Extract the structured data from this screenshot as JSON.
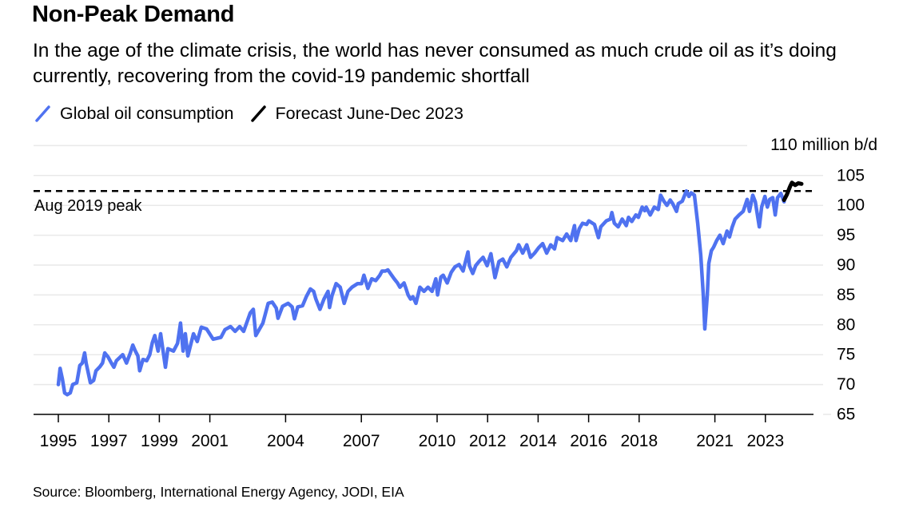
{
  "chart_data": {
    "type": "line",
    "title": "Non-Peak Demand",
    "subtitle": "In the age of the climate crisis, the world has never consumed as much crude oil as it’s doing currently, recovering from the covid-19 pandemic shortfall",
    "xlabel": "",
    "ylabel": "million b/d",
    "y_unit_label": "110 million b/d",
    "ylim": [
      65,
      110
    ],
    "xlim": [
      1995,
      2024.9
    ],
    "grid": true,
    "legend_position": "top-left",
    "y_ticks": [
      "110 million b/d",
      "105",
      "100",
      "95",
      "90",
      "85",
      "80",
      "75",
      "70",
      "65"
    ],
    "y_tick_values": [
      110,
      105,
      100,
      95,
      90,
      85,
      80,
      75,
      70,
      65
    ],
    "x_ticks": [
      "1995",
      "1997",
      "1999",
      "2001",
      "2004",
      "2007",
      "2010",
      "2012",
      "2014",
      "2016",
      "2018",
      "2021",
      "2023"
    ],
    "x_tick_values": [
      1995,
      1997,
      1999,
      2001,
      2004,
      2007,
      2010,
      2012,
      2014,
      2016,
      2018,
      2021,
      2023
    ],
    "reference_line": {
      "label": "Aug 2019 peak",
      "value": 102.4,
      "style": "dashed",
      "color": "#000000"
    },
    "series": [
      {
        "name": "Global oil consumption",
        "color": "#4f72f0",
        "points": [
          [
            1995.0,
            70.0
          ],
          [
            1995.07,
            72.7
          ],
          [
            1995.16,
            70.9
          ],
          [
            1995.25,
            68.6
          ],
          [
            1995.35,
            68.3
          ],
          [
            1995.47,
            68.6
          ],
          [
            1995.57,
            70.0
          ],
          [
            1995.73,
            70.3
          ],
          [
            1995.85,
            73.2
          ],
          [
            1995.95,
            73.6
          ],
          [
            1996.04,
            75.3
          ],
          [
            1996.1,
            73.6
          ],
          [
            1996.27,
            70.3
          ],
          [
            1996.4,
            70.7
          ],
          [
            1996.49,
            72.3
          ],
          [
            1996.65,
            73.0
          ],
          [
            1996.75,
            73.6
          ],
          [
            1996.84,
            75.3
          ],
          [
            1996.97,
            74.6
          ],
          [
            1997.1,
            73.6
          ],
          [
            1997.2,
            72.9
          ],
          [
            1997.3,
            74.0
          ],
          [
            1997.45,
            74.6
          ],
          [
            1997.55,
            75.0
          ],
          [
            1997.7,
            73.6
          ],
          [
            1997.85,
            75.3
          ],
          [
            1997.95,
            76.6
          ],
          [
            1998.05,
            75.6
          ],
          [
            1998.15,
            74.8
          ],
          [
            1998.22,
            72.3
          ],
          [
            1998.35,
            74.2
          ],
          [
            1998.5,
            74.0
          ],
          [
            1998.62,
            75.0
          ],
          [
            1998.72,
            77.0
          ],
          [
            1998.82,
            78.2
          ],
          [
            1998.95,
            75.6
          ],
          [
            1999.05,
            78.5
          ],
          [
            1999.15,
            75.6
          ],
          [
            1999.24,
            72.9
          ],
          [
            1999.34,
            76.0
          ],
          [
            1999.56,
            75.6
          ],
          [
            1999.72,
            76.9
          ],
          [
            1999.84,
            80.3
          ],
          [
            1999.94,
            75.6
          ],
          [
            2000.03,
            78.5
          ],
          [
            2000.13,
            74.8
          ],
          [
            2000.35,
            78.5
          ],
          [
            2000.5,
            77.2
          ],
          [
            2000.66,
            79.6
          ],
          [
            2000.87,
            79.3
          ],
          [
            2001.13,
            77.6
          ],
          [
            2001.44,
            77.9
          ],
          [
            2001.6,
            79.2
          ],
          [
            2001.82,
            79.7
          ],
          [
            2002.0,
            78.9
          ],
          [
            2002.18,
            79.7
          ],
          [
            2002.34,
            78.9
          ],
          [
            2002.6,
            82.0
          ],
          [
            2002.72,
            82.6
          ],
          [
            2002.82,
            78.2
          ],
          [
            2003.1,
            80.3
          ],
          [
            2003.31,
            83.6
          ],
          [
            2003.47,
            83.8
          ],
          [
            2003.63,
            82.8
          ],
          [
            2003.7,
            81.1
          ],
          [
            2003.88,
            83.1
          ],
          [
            2004.1,
            83.6
          ],
          [
            2004.26,
            83.0
          ],
          [
            2004.35,
            81.0
          ],
          [
            2004.48,
            83.0
          ],
          [
            2004.67,
            83.2
          ],
          [
            2004.82,
            84.7
          ],
          [
            2004.98,
            86.0
          ],
          [
            2005.11,
            85.6
          ],
          [
            2005.2,
            84.3
          ],
          [
            2005.36,
            82.6
          ],
          [
            2005.52,
            84.3
          ],
          [
            2005.68,
            85.6
          ],
          [
            2005.74,
            82.9
          ],
          [
            2005.84,
            84.9
          ],
          [
            2006.0,
            86.9
          ],
          [
            2006.16,
            86.3
          ],
          [
            2006.32,
            83.6
          ],
          [
            2006.47,
            85.6
          ],
          [
            2006.63,
            86.3
          ],
          [
            2006.85,
            86.9
          ],
          [
            2007.01,
            86.9
          ],
          [
            2007.1,
            88.3
          ],
          [
            2007.26,
            86.1
          ],
          [
            2007.41,
            87.7
          ],
          [
            2007.57,
            87.4
          ],
          [
            2007.73,
            88.3
          ],
          [
            2007.82,
            89.0
          ],
          [
            2007.95,
            89.0
          ],
          [
            2008.05,
            89.2
          ],
          [
            2008.2,
            88.3
          ],
          [
            2008.3,
            87.7
          ],
          [
            2008.43,
            87.0
          ],
          [
            2008.53,
            86.3
          ],
          [
            2008.69,
            87.0
          ],
          [
            2008.75,
            86.3
          ],
          [
            2008.85,
            85.0
          ],
          [
            2008.95,
            84.3
          ],
          [
            2009.04,
            84.7
          ],
          [
            2009.16,
            83.6
          ],
          [
            2009.32,
            86.3
          ],
          [
            2009.48,
            85.6
          ],
          [
            2009.64,
            86.3
          ],
          [
            2009.8,
            85.6
          ],
          [
            2009.95,
            87.7
          ],
          [
            2010.02,
            85.0
          ],
          [
            2010.15,
            88.0
          ],
          [
            2010.24,
            88.3
          ],
          [
            2010.4,
            87.0
          ],
          [
            2010.56,
            88.8
          ],
          [
            2010.71,
            89.7
          ],
          [
            2010.87,
            90.1
          ],
          [
            2011.03,
            89.0
          ],
          [
            2011.22,
            92.2
          ],
          [
            2011.28,
            89.9
          ],
          [
            2011.41,
            88.6
          ],
          [
            2011.53,
            89.9
          ],
          [
            2011.66,
            90.6
          ],
          [
            2011.82,
            91.3
          ],
          [
            2011.98,
            89.9
          ],
          [
            2012.13,
            91.9
          ],
          [
            2012.29,
            87.9
          ],
          [
            2012.45,
            90.6
          ],
          [
            2012.6,
            91.0
          ],
          [
            2012.76,
            89.7
          ],
          [
            2012.92,
            91.3
          ],
          [
            2013.14,
            92.4
          ],
          [
            2013.23,
            93.4
          ],
          [
            2013.39,
            92.0
          ],
          [
            2013.55,
            93.4
          ],
          [
            2013.7,
            91.3
          ],
          [
            2013.86,
            92.0
          ],
          [
            2014.02,
            92.9
          ],
          [
            2014.18,
            93.6
          ],
          [
            2014.34,
            92.0
          ],
          [
            2014.5,
            93.4
          ],
          [
            2014.65,
            92.7
          ],
          [
            2014.75,
            94.6
          ],
          [
            2014.97,
            94.1
          ],
          [
            2015.13,
            95.2
          ],
          [
            2015.29,
            94.1
          ],
          [
            2015.44,
            96.6
          ],
          [
            2015.5,
            94.1
          ],
          [
            2015.63,
            96.1
          ],
          [
            2015.76,
            97.0
          ],
          [
            2015.92,
            96.8
          ],
          [
            2016.01,
            97.4
          ],
          [
            2016.23,
            96.8
          ],
          [
            2016.39,
            94.6
          ],
          [
            2016.48,
            96.4
          ],
          [
            2016.7,
            97.4
          ],
          [
            2016.86,
            97.7
          ],
          [
            2016.92,
            98.8
          ],
          [
            2017.02,
            97.0
          ],
          [
            2017.17,
            96.4
          ],
          [
            2017.33,
            97.7
          ],
          [
            2017.49,
            96.6
          ],
          [
            2017.58,
            98.0
          ],
          [
            2017.71,
            97.3
          ],
          [
            2017.87,
            98.4
          ],
          [
            2017.97,
            98.0
          ],
          [
            2018.12,
            99.7
          ],
          [
            2018.22,
            99.1
          ],
          [
            2018.28,
            99.7
          ],
          [
            2018.44,
            98.4
          ],
          [
            2018.6,
            99.7
          ],
          [
            2018.76,
            99.3
          ],
          [
            2018.85,
            101.7
          ],
          [
            2018.98,
            100.7
          ],
          [
            2019.1,
            100.0
          ],
          [
            2019.23,
            100.9
          ],
          [
            2019.33,
            100.3
          ],
          [
            2019.48,
            99.0
          ],
          [
            2019.55,
            100.3
          ],
          [
            2019.71,
            100.7
          ],
          [
            2019.87,
            102.4
          ],
          [
            2019.97,
            101.5
          ],
          [
            2020.06,
            102.1
          ],
          [
            2020.19,
            101.7
          ],
          [
            2020.32,
            97.0
          ],
          [
            2020.44,
            91.7
          ],
          [
            2020.54,
            85.0
          ],
          [
            2020.6,
            79.3
          ],
          [
            2020.7,
            85.0
          ],
          [
            2020.76,
            90.3
          ],
          [
            2020.86,
            92.4
          ],
          [
            2020.95,
            93.0
          ],
          [
            2021.07,
            94.1
          ],
          [
            2021.2,
            95.0
          ],
          [
            2021.33,
            93.6
          ],
          [
            2021.48,
            95.7
          ],
          [
            2021.58,
            94.7
          ],
          [
            2021.68,
            96.3
          ],
          [
            2021.8,
            97.7
          ],
          [
            2021.96,
            98.4
          ],
          [
            2022.12,
            99.0
          ],
          [
            2022.28,
            101.0
          ],
          [
            2022.37,
            99.0
          ],
          [
            2022.5,
            101.7
          ],
          [
            2022.6,
            100.6
          ],
          [
            2022.76,
            96.4
          ],
          [
            2022.85,
            99.7
          ],
          [
            2022.98,
            101.5
          ],
          [
            2023.08,
            99.7
          ],
          [
            2023.17,
            101.0
          ],
          [
            2023.29,
            101.3
          ],
          [
            2023.39,
            98.4
          ],
          [
            2023.48,
            101.3
          ],
          [
            2023.61,
            102.0
          ],
          [
            2023.74,
            100.6
          ]
        ]
      },
      {
        "name": "Forecast June-Dec 2023",
        "color": "#000000",
        "points": [
          [
            2023.74,
            100.9
          ],
          [
            2023.85,
            101.8
          ],
          [
            2023.98,
            103.2
          ],
          [
            2024.05,
            103.8
          ],
          [
            2024.18,
            103.4
          ],
          [
            2024.3,
            103.7
          ],
          [
            2024.43,
            103.6
          ]
        ]
      }
    ],
    "source": "Source: Bloomberg, International Energy Agency, JODI, EIA"
  }
}
